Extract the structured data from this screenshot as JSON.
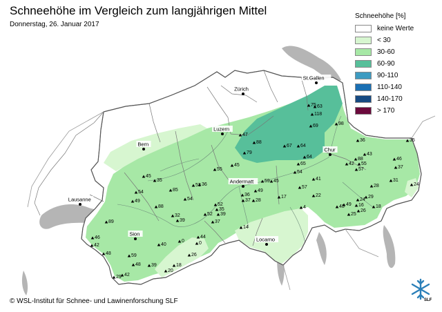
{
  "title": "Schneehöhe im Vergleich zum langjährigen Mittel",
  "subtitle": "Donnerstag, 26. Januar 2017",
  "copyright": "© WSL-Institut für Schnee- und Lawinenforschung SLF",
  "logo_text": "SLF",
  "legend": {
    "title": "Schneehöhe [%]",
    "items": [
      {
        "label": "keine Werte",
        "color": "#ffffff"
      },
      {
        "label": "< 30",
        "color": "#d7f6d0"
      },
      {
        "label": "30-60",
        "color": "#a7e8a6"
      },
      {
        "label": "60-90",
        "color": "#57bf9a"
      },
      {
        "label": "90-110",
        "color": "#3d9bc1"
      },
      {
        "label": "110-140",
        "color": "#1a6fb3"
      },
      {
        "label": "140-170",
        "color": "#164a82"
      },
      {
        "label": "> 170",
        "color": "#6b0a3c"
      }
    ]
  },
  "cities": [
    {
      "name": "Zürich"
    },
    {
      "name": "St.Gallen"
    },
    {
      "name": "Luzern"
    },
    {
      "name": "Bern"
    },
    {
      "name": "Chur"
    },
    {
      "name": "Andermatt"
    },
    {
      "name": "Lausanne"
    },
    {
      "name": "Sion"
    },
    {
      "name": "Locarno"
    }
  ],
  "stations": [
    {
      "value": "75"
    },
    {
      "value": "63"
    },
    {
      "value": "118"
    },
    {
      "value": "69"
    },
    {
      "value": "98"
    },
    {
      "value": "47"
    },
    {
      "value": "88"
    },
    {
      "value": "79"
    },
    {
      "value": "67"
    },
    {
      "value": "64"
    },
    {
      "value": "64"
    },
    {
      "value": "65"
    },
    {
      "value": "45"
    },
    {
      "value": "55"
    },
    {
      "value": "36"
    },
    {
      "value": "43"
    },
    {
      "value": "88"
    },
    {
      "value": "42"
    },
    {
      "value": "55"
    },
    {
      "value": "57"
    },
    {
      "value": "46"
    },
    {
      "value": "37"
    },
    {
      "value": "35"
    },
    {
      "value": "24"
    },
    {
      "value": "31"
    },
    {
      "value": "28"
    },
    {
      "value": "29"
    },
    {
      "value": "24"
    },
    {
      "value": "16"
    },
    {
      "value": "18"
    },
    {
      "value": "26"
    },
    {
      "value": "48"
    },
    {
      "value": "49"
    },
    {
      "value": "25"
    },
    {
      "value": "54"
    },
    {
      "value": "41"
    },
    {
      "value": "57"
    },
    {
      "value": "22"
    },
    {
      "value": "17"
    },
    {
      "value": "4"
    },
    {
      "value": "59"
    },
    {
      "value": "45"
    },
    {
      "value": "49"
    },
    {
      "value": "36"
    },
    {
      "value": "37"
    },
    {
      "value": "28"
    },
    {
      "value": "14"
    },
    {
      "value": "45"
    },
    {
      "value": "35"
    },
    {
      "value": "54"
    },
    {
      "value": "49"
    },
    {
      "value": "85"
    },
    {
      "value": "53"
    },
    {
      "value": "36"
    },
    {
      "value": "54"
    },
    {
      "value": "88"
    },
    {
      "value": "52"
    },
    {
      "value": "35"
    },
    {
      "value": "39"
    },
    {
      "value": "52"
    },
    {
      "value": "37"
    },
    {
      "value": "32"
    },
    {
      "value": "39"
    },
    {
      "value": "89"
    },
    {
      "value": "46"
    },
    {
      "value": "42"
    },
    {
      "value": "48"
    },
    {
      "value": "40"
    },
    {
      "value": "0"
    },
    {
      "value": "44"
    },
    {
      "value": "0"
    },
    {
      "value": "26"
    },
    {
      "value": "59"
    },
    {
      "value": "48"
    },
    {
      "value": "39"
    },
    {
      "value": "42"
    },
    {
      "value": "29"
    },
    {
      "value": "20"
    },
    {
      "value": "18"
    }
  ]
}
